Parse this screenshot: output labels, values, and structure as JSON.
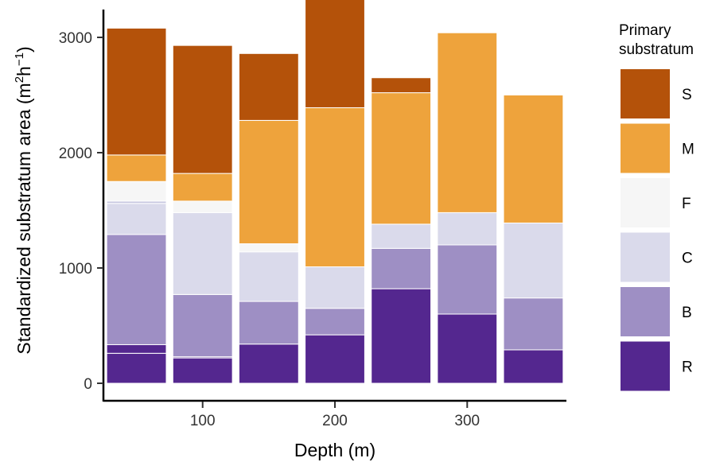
{
  "chart_data": {
    "type": "bar",
    "stacked": true,
    "xlabel": "Depth (m)",
    "ylabel": "Standardized substratum area (m",
    "ylabel_unit_tail": "h",
    "ylabel_sup1": "2",
    "ylabel_sup2": "−1",
    "ylabel_close": ")",
    "ylim": [
      0,
      3100
    ],
    "xlim": [
      25,
      375
    ],
    "x_ticks": [
      100,
      200,
      300
    ],
    "y_ticks": [
      0,
      1000,
      2000,
      3000
    ],
    "grid": false,
    "legend_title_line1": "Primary",
    "legend_title_line2": "substratum",
    "legend_position": "right",
    "categories": [
      50,
      100,
      150,
      200,
      250,
      300,
      350
    ],
    "series": [
      {
        "name": "R",
        "color": "#54278f",
        "values": [
          260,
          220,
          340,
          420,
          820,
          600,
          290
        ]
      },
      {
        "name": "",
        "color": "#54278f",
        "values": [
          75,
          10,
          0,
          0,
          0,
          0,
          0
        ]
      },
      {
        "name": "B",
        "color": "#9e8fc4",
        "values": [
          955,
          540,
          370,
          230,
          350,
          600,
          450
        ]
      },
      {
        "name": "C",
        "color": "#dadaeb",
        "values": [
          270,
          710,
          430,
          360,
          210,
          280,
          650
        ]
      },
      {
        "name": "",
        "color": "#c6c6e0",
        "values": [
          20,
          0,
          0,
          0,
          0,
          0,
          0
        ]
      },
      {
        "name": "F",
        "color": "#f6f6f6",
        "values": [
          170,
          100,
          70,
          0,
          0,
          0,
          0
        ]
      },
      {
        "name": "M",
        "color": "#eea33c",
        "values": [
          230,
          240,
          1070,
          1380,
          1140,
          1560,
          1110
        ]
      },
      {
        "name": "S",
        "color": "#b4520a",
        "values": [
          1100,
          1110,
          580,
          1070,
          130,
          0,
          0
        ]
      }
    ],
    "legend": [
      {
        "label": "S",
        "color": "#b4520a"
      },
      {
        "label": "M",
        "color": "#eea33c"
      },
      {
        "label": "F",
        "color": "#f6f6f6"
      },
      {
        "label": "C",
        "color": "#dadaeb"
      },
      {
        "label": "B",
        "color": "#9e8fc4"
      },
      {
        "label": "R",
        "color": "#54278f"
      }
    ]
  }
}
